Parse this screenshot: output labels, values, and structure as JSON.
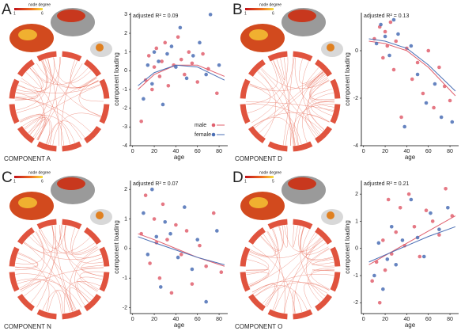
{
  "panels": [
    {
      "letter": "A",
      "component": "COMPONENT A",
      "legend_title": "node degree",
      "legend_min": 1,
      "legend_max": 6
    },
    {
      "letter": "B",
      "component": "COMPONENT D",
      "legend_title": "node degree",
      "legend_min": 1,
      "legend_max": 6
    },
    {
      "letter": "C",
      "component": "COMPONENT N",
      "legend_title": "node degree",
      "legend_min": 1,
      "legend_max": 6
    },
    {
      "letter": "D",
      "component": "COMPONENT O",
      "legend_title": "node degree",
      "legend_min": 1,
      "legend_max": 5
    }
  ],
  "chart_data": [
    {
      "type": "scatter",
      "annotation": "adjusted R² = 0.09",
      "x_label": "age",
      "y_label": "component loading",
      "xlim": [
        -2,
        88
      ],
      "ylim": [
        -4,
        3.1
      ],
      "xticks": [
        0,
        20,
        40,
        60,
        80
      ],
      "yticks": [
        -4,
        -3,
        -2,
        -1,
        0,
        1,
        2,
        3
      ],
      "legend": "lower right",
      "series": [
        {
          "name": "male",
          "color": "#e0606e",
          "x": [
            8,
            12,
            15,
            18,
            20,
            22,
            25,
            27,
            30,
            33,
            38,
            42,
            45,
            48,
            52,
            55,
            60,
            65,
            70,
            78
          ],
          "values": [
            -2.7,
            -0.5,
            0.8,
            -1,
            0.2,
            1.2,
            -0.3,
            0.5,
            1.5,
            -0.8,
            0.3,
            1.8,
            0.6,
            -0.2,
            1,
            0.4,
            -0.6,
            0.9,
            0.1,
            -1.2
          ],
          "fit_x": [
            5,
            20,
            40,
            60,
            85
          ],
          "fit_y": [
            -1,
            -0.2,
            0.3,
            0.3,
            -0.3
          ]
        },
        {
          "name": "female",
          "color": "#4b6fb5",
          "x": [
            10,
            14,
            18,
            20,
            24,
            28,
            32,
            36,
            40,
            44,
            50,
            56,
            62,
            68,
            72,
            80
          ],
          "values": [
            -1.5,
            0.3,
            -0.7,
            1,
            0.5,
            -1.8,
            0.9,
            1.3,
            0.2,
            2.3,
            -0.4,
            0.8,
            1.5,
            -0.2,
            3,
            0.3
          ],
          "fit_x": [
            5,
            20,
            40,
            60,
            85
          ],
          "fit_y": [
            -0.8,
            -0.1,
            0.3,
            0.2,
            -0.5
          ]
        }
      ]
    },
    {
      "type": "scatter",
      "annotation": "adjusted R² = 0.13",
      "x_label": "age",
      "y_label": "component loading",
      "xlim": [
        -2,
        88
      ],
      "ylim": [
        -4,
        1.6
      ],
      "xticks": [
        0,
        20,
        40,
        60,
        80
      ],
      "yticks": [
        -4,
        -2,
        0
      ],
      "legend": false,
      "series": [
        {
          "name": "male",
          "color": "#e0606e",
          "x": [
            10,
            15,
            18,
            20,
            22,
            25,
            28,
            30,
            35,
            40,
            45,
            50,
            55,
            60,
            65,
            70,
            75,
            80
          ],
          "values": [
            0.5,
            1,
            -0.3,
            0.8,
            0.2,
            1.2,
            -0.8,
            0.4,
            -2.8,
            0.1,
            -1.2,
            -0.5,
            -1.8,
            0,
            -2.4,
            -0.7,
            -1.5,
            -2.1
          ],
          "fit_x": [
            5,
            20,
            40,
            60,
            85
          ],
          "fit_y": [
            0.4,
            0.3,
            0,
            -0.7,
            -1.9
          ]
        },
        {
          "name": "female",
          "color": "#4b6fb5",
          "x": [
            12,
            16,
            20,
            24,
            28,
            32,
            38,
            44,
            50,
            58,
            66,
            72,
            82
          ],
          "values": [
            0.3,
            1.1,
            0.6,
            -0.2,
            1.3,
            0.7,
            -3.2,
            0.2,
            -1,
            -2.2,
            -1.4,
            -2.8,
            -3
          ],
          "fit_x": [
            5,
            20,
            40,
            60,
            85
          ],
          "fit_y": [
            0.5,
            0.4,
            0.1,
            -0.6,
            -1.7
          ]
        }
      ]
    },
    {
      "type": "scatter",
      "annotation": "adjusted R² = 0.07",
      "x_label": "age",
      "y_label": "component loading",
      "xlim": [
        -2,
        88
      ],
      "ylim": [
        -2.2,
        2.3
      ],
      "xticks": [
        0,
        20,
        40,
        60,
        80
      ],
      "yticks": [
        -2,
        -1,
        0,
        1,
        2
      ],
      "legend": false,
      "series": [
        {
          "name": "male",
          "color": "#e0606e",
          "x": [
            8,
            12,
            16,
            20,
            22,
            25,
            28,
            32,
            36,
            40,
            45,
            50,
            55,
            62,
            68,
            75,
            82
          ],
          "values": [
            0.5,
            1.8,
            -0.5,
            1,
            0.2,
            -1,
            1.5,
            0.3,
            -1.5,
            0.8,
            -0.2,
            0.6,
            -1.2,
            0.1,
            -0.6,
            1.2,
            -0.8
          ],
          "fit_x": [
            5,
            20,
            40,
            60,
            85
          ],
          "fit_y": [
            0.5,
            0.3,
            0,
            -0.3,
            -0.6
          ]
        },
        {
          "name": "female",
          "color": "#4b6fb5",
          "x": [
            10,
            14,
            18,
            22,
            26,
            30,
            35,
            42,
            48,
            55,
            60,
            68,
            78
          ],
          "values": [
            1.2,
            -0.2,
            2,
            0.4,
            -1.3,
            0.9,
            0.5,
            -0.3,
            1.4,
            -0.7,
            0.3,
            -1.8,
            0.6
          ],
          "fit_x": [
            5,
            20,
            40,
            60,
            85
          ],
          "fit_y": [
            0.4,
            0.2,
            -0.05,
            -0.3,
            -0.55
          ]
        }
      ]
    },
    {
      "type": "scatter",
      "annotation": "adjusted R² = 0.21",
      "x_label": "age",
      "y_label": "component loading",
      "xlim": [
        -2,
        88
      ],
      "ylim": [
        -2.4,
        2.5
      ],
      "xticks": [
        0,
        20,
        40,
        60,
        80
      ],
      "yticks": [
        -2,
        -1,
        0,
        1,
        2
      ],
      "legend": false,
      "series": [
        {
          "name": "male",
          "color": "#e0606e",
          "x": [
            8,
            12,
            15,
            18,
            20,
            23,
            26,
            30,
            34,
            38,
            42,
            47,
            52,
            58,
            64,
            70,
            76,
            82
          ],
          "values": [
            -1.2,
            -0.5,
            -2,
            0.3,
            -0.8,
            1.8,
            -0.2,
            0.6,
            1.5,
            0.1,
            2,
            0.8,
            -0.3,
            1.4,
            1,
            0.5,
            2.2,
            1.2
          ],
          "fit_x": [
            5,
            20,
            40,
            60,
            85
          ],
          "fit_y": [
            -0.6,
            -0.26,
            0.19,
            0.64,
            1.2
          ]
        },
        {
          "name": "female",
          "color": "#4b6fb5",
          "x": [
            10,
            14,
            18,
            22,
            26,
            30,
            36,
            44,
            50,
            56,
            62,
            70,
            78
          ],
          "values": [
            -1,
            0.2,
            -1.5,
            -0.4,
            0.8,
            -0.6,
            0.3,
            1.8,
            0.4,
            -0.3,
            1.3,
            0.7,
            1.5
          ],
          "fit_x": [
            5,
            20,
            40,
            60,
            85
          ],
          "fit_y": [
            -0.5,
            -0.24,
            0.1,
            0.44,
            0.8
          ]
        }
      ]
    }
  ]
}
